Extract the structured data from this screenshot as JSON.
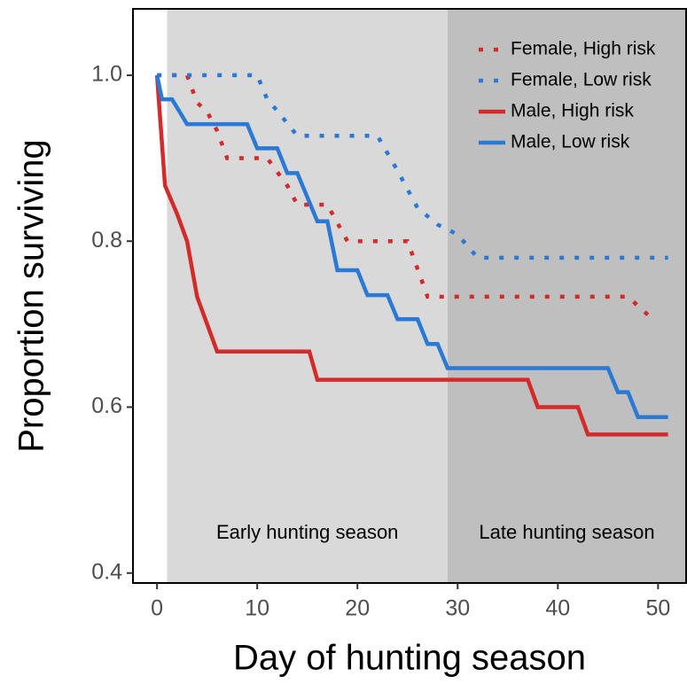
{
  "chart_data": {
    "type": "line",
    "x_label": "Day of hunting season",
    "y_label": "Proportion surviving",
    "xlim": [
      -2.4,
      52.8
    ],
    "ylim": [
      0.388,
      1.08
    ],
    "xticks": [
      0,
      10,
      20,
      30,
      40,
      50
    ],
    "yticks": [
      0.4,
      0.6,
      0.8,
      {
        "value": 1,
        "label": "1.0"
      }
    ],
    "legend_position": "top-right",
    "regions": [
      {
        "label": "Early hunting season",
        "start": 1,
        "end": 29,
        "color": "#d9d9d9"
      },
      {
        "label": "Late hunting season",
        "start": 29,
        "end": 52.8,
        "color": "#bfbfbf"
      }
    ],
    "series": [
      {
        "name": "Female, High risk",
        "color": "#d42a2a",
        "linestyle": "dotted",
        "x": [
          0,
          3,
          4,
          5,
          6,
          7,
          11,
          13,
          14,
          17,
          19,
          25,
          27,
          47,
          49
        ],
        "values": [
          1,
          1,
          0.967,
          0.956,
          0.933,
          0.9,
          0.9,
          0.867,
          0.844,
          0.844,
          0.8,
          0.8,
          0.733,
          0.733,
          0.711
        ]
      },
      {
        "name": "Female, Low risk",
        "color": "#2a7ad5",
        "linestyle": "dotted",
        "x": [
          0,
          10,
          11,
          12,
          14,
          22,
          24,
          26,
          28,
          30,
          32,
          51
        ],
        "values": [
          1,
          1,
          0.971,
          0.957,
          0.927,
          0.927,
          0.885,
          0.84,
          0.82,
          0.808,
          0.78,
          0.78
        ]
      },
      {
        "name": "Male, High risk",
        "color": "#d42a2a",
        "linestyle": "solid",
        "x": [
          0,
          0.8,
          2,
          3,
          4,
          6,
          15.2,
          16,
          37,
          38,
          42,
          43,
          51
        ],
        "values": [
          1,
          0.867,
          0.833,
          0.8,
          0.733,
          0.667,
          0.667,
          0.633,
          0.633,
          0.6,
          0.6,
          0.567,
          0.567
        ]
      },
      {
        "name": "Male, Low risk",
        "color": "#2a7ad5",
        "linestyle": "solid",
        "x": [
          0,
          0.5,
          1.5,
          3,
          9,
          10,
          12,
          13,
          14,
          15,
          16,
          17,
          18,
          20,
          21,
          23,
          24,
          26,
          27,
          28,
          29,
          45,
          46,
          47,
          48,
          51
        ],
        "values": [
          1,
          0.971,
          0.971,
          0.941,
          0.941,
          0.912,
          0.912,
          0.882,
          0.882,
          0.853,
          0.824,
          0.824,
          0.765,
          0.765,
          0.735,
          0.735,
          0.706,
          0.706,
          0.676,
          0.676,
          0.647,
          0.647,
          0.618,
          0.618,
          0.588,
          0.588
        ]
      }
    ]
  }
}
